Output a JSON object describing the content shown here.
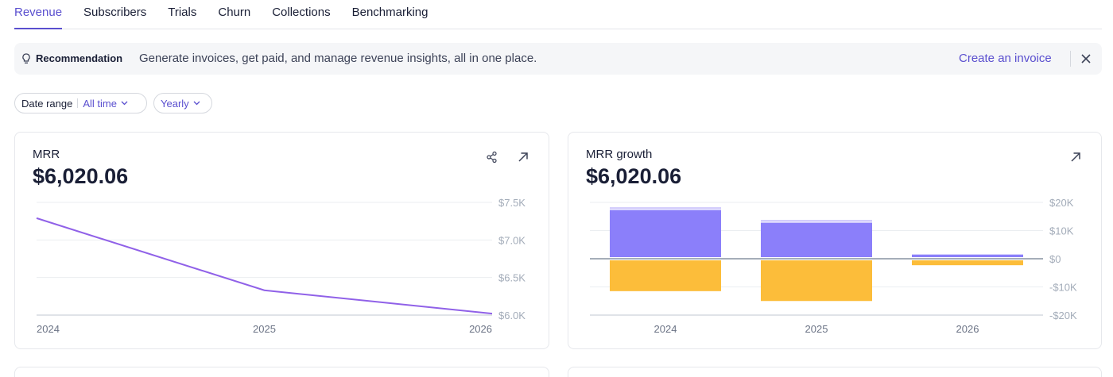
{
  "tabs": [
    {
      "label": "Revenue",
      "active": true
    },
    {
      "label": "Subscribers",
      "active": false
    },
    {
      "label": "Trials",
      "active": false
    },
    {
      "label": "Churn",
      "active": false
    },
    {
      "label": "Collections",
      "active": false
    },
    {
      "label": "Benchmarking",
      "active": false
    }
  ],
  "banner": {
    "label": "Recommendation",
    "text": "Generate invoices, get paid, and manage revenue insights, all in one place.",
    "link": "Create an invoice",
    "icon": "lightbulb-icon"
  },
  "filters": {
    "date_range_label": "Date range",
    "date_range_value": "All time",
    "period_value": "Yearly"
  },
  "colors": {
    "accent": "#5a4fcf",
    "line": "#9061e8",
    "bar_positive": "#8b7ffa",
    "bar_positive_light": "#d3cdfc",
    "bar_negative": "#fcbd3a"
  },
  "cards": {
    "mrr": {
      "title": "MRR",
      "value": "$6,020.06"
    },
    "growth": {
      "title": "MRR growth",
      "value": "$6,020.06"
    }
  },
  "chart_data": [
    {
      "type": "line",
      "title": "MRR",
      "categories": [
        "2024",
        "2025",
        "2026"
      ],
      "series": [
        {
          "values": [
            7290,
            6330,
            6020
          ]
        }
      ],
      "ylim": [
        6000,
        7500
      ],
      "yticks": [
        "$7.5K",
        "$7.0K",
        "$6.5K",
        "$6.0K"
      ],
      "ytick_values": [
        7500,
        7000,
        6500,
        6000
      ],
      "grid": true
    },
    {
      "type": "bar",
      "title": "MRR growth",
      "categories": [
        "2024",
        "2025",
        "2026"
      ],
      "series": [
        {
          "values": [
            17300,
            12800,
            1500
          ],
          "segment": "positive"
        },
        {
          "values": [
            1000,
            1000,
            0
          ],
          "segment": "positive-top"
        },
        {
          "values": [
            -11500,
            -15000,
            -2300
          ],
          "segment": "negative"
        }
      ],
      "ylim": [
        -20000,
        20000
      ],
      "yticks": [
        "$20K",
        "$10K",
        "$0",
        "-$10K",
        "-$20K"
      ],
      "ytick_values": [
        20000,
        10000,
        0,
        -10000,
        -20000
      ],
      "grid": true
    }
  ]
}
